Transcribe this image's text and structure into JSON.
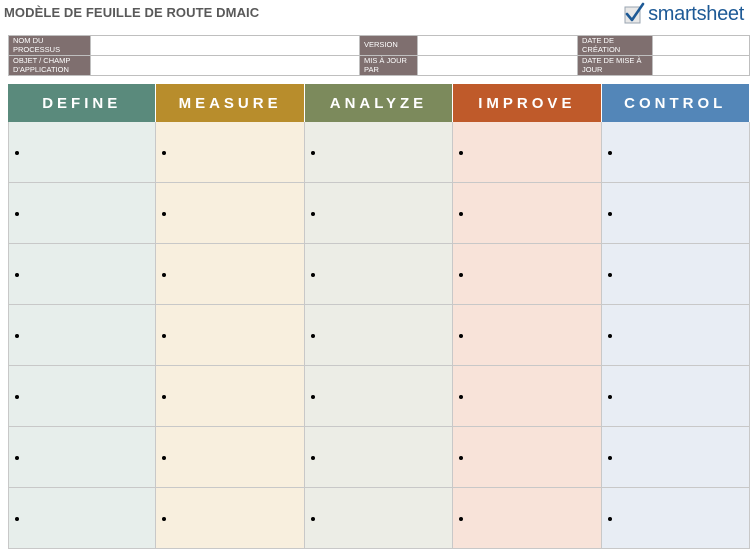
{
  "title": "MODÈLE DE FEUILLE DE ROUTE DMAIC",
  "brand": {
    "name": "smartsheet",
    "icon": "checkmark-logo-icon"
  },
  "meta": {
    "rows": [
      [
        {
          "label": "NOM DU PROCESSUS",
          "value": ""
        },
        {
          "label": "VERSION",
          "value": ""
        },
        {
          "label": "DATE DE CRÉATION",
          "value": ""
        }
      ],
      [
        {
          "label": "OBJET / CHAMP D'APPLICATION",
          "value": ""
        },
        {
          "label": "MIS À JOUR PAR",
          "value": ""
        },
        {
          "label": "DATE DE MISE À JOUR",
          "value": ""
        }
      ]
    ]
  },
  "phases": [
    {
      "name": "DEFINE",
      "header_color": "#5a8a7c",
      "cell_color": "#e7eeeb",
      "bullets": [
        "",
        "",
        "",
        "",
        "",
        "",
        ""
      ]
    },
    {
      "name": "MEASURE",
      "header_color": "#b88d2c",
      "cell_color": "#f8efde",
      "bullets": [
        "",
        "",
        "",
        "",
        "",
        "",
        ""
      ]
    },
    {
      "name": "ANALYZE",
      "header_color": "#7c8a5c",
      "cell_color": "#ecede6",
      "bullets": [
        "",
        "",
        "",
        "",
        "",
        "",
        ""
      ]
    },
    {
      "name": "IMPROVE",
      "header_color": "#bf5a2a",
      "cell_color": "#f8e3d9",
      "bullets": [
        "",
        "",
        "",
        "",
        "",
        "",
        ""
      ]
    },
    {
      "name": "CONTROL",
      "header_color": "#5386b8",
      "cell_color": "#e8edf4",
      "bullets": [
        "",
        "",
        "",
        "",
        "",
        "",
        ""
      ]
    }
  ]
}
